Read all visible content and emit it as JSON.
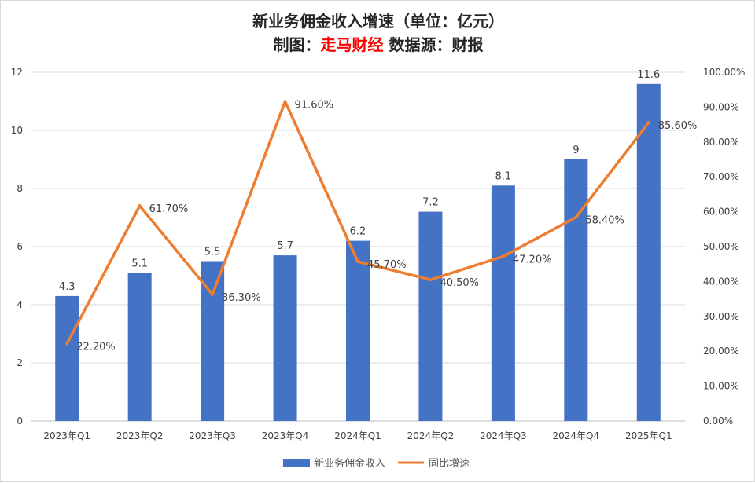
{
  "chart_data": {
    "type": "bar",
    "title_line1": "新业务佣金收入增速（单位：亿元）",
    "title_line2_prefix": "制图：",
    "title_line2_brand": "走马财经",
    "title_line2_suffix": " 数据源：财报",
    "categories": [
      "2023年Q1",
      "2023年Q2",
      "2023年Q3",
      "2023年Q4",
      "2024年Q1",
      "2024年Q2",
      "2024年Q3",
      "2024年Q4",
      "2025年Q1"
    ],
    "series": [
      {
        "name": "新业务佣金收入",
        "kind": "bar",
        "color": "#4472c4",
        "values": [
          4.3,
          5.1,
          5.5,
          5.7,
          6.2,
          7.2,
          8.1,
          9,
          11.6
        ],
        "labels": [
          "4.3",
          "5.1",
          "5.5",
          "5.7",
          "6.2",
          "7.2",
          "8.1",
          "9",
          "11.6"
        ]
      },
      {
        "name": "同比增速",
        "kind": "line",
        "color": "#ed7d31",
        "axis": "right",
        "values": [
          22.2,
          61.7,
          36.3,
          91.6,
          45.7,
          40.5,
          47.2,
          58.4,
          85.6
        ],
        "labels": [
          "22.20%",
          "61.70%",
          "36.30%",
          "91.60%",
          "45.70%",
          "40.50%",
          "47.20%",
          "58.40%",
          "85.60%"
        ]
      }
    ],
    "left_axis": {
      "min": 0,
      "max": 12,
      "ticks": [
        "0",
        "2",
        "4",
        "6",
        "8",
        "10",
        "12"
      ]
    },
    "right_axis": {
      "min": 0,
      "max": 100,
      "ticks": [
        "0.00%",
        "10.00%",
        "20.00%",
        "30.00%",
        "40.00%",
        "50.00%",
        "60.00%",
        "70.00%",
        "80.00%",
        "90.00%",
        "100.00%"
      ]
    },
    "grid": true,
    "legend_position": "bottom",
    "colors": {
      "title_brand": "#ff0000",
      "gridline": "#d9d9d9"
    }
  }
}
